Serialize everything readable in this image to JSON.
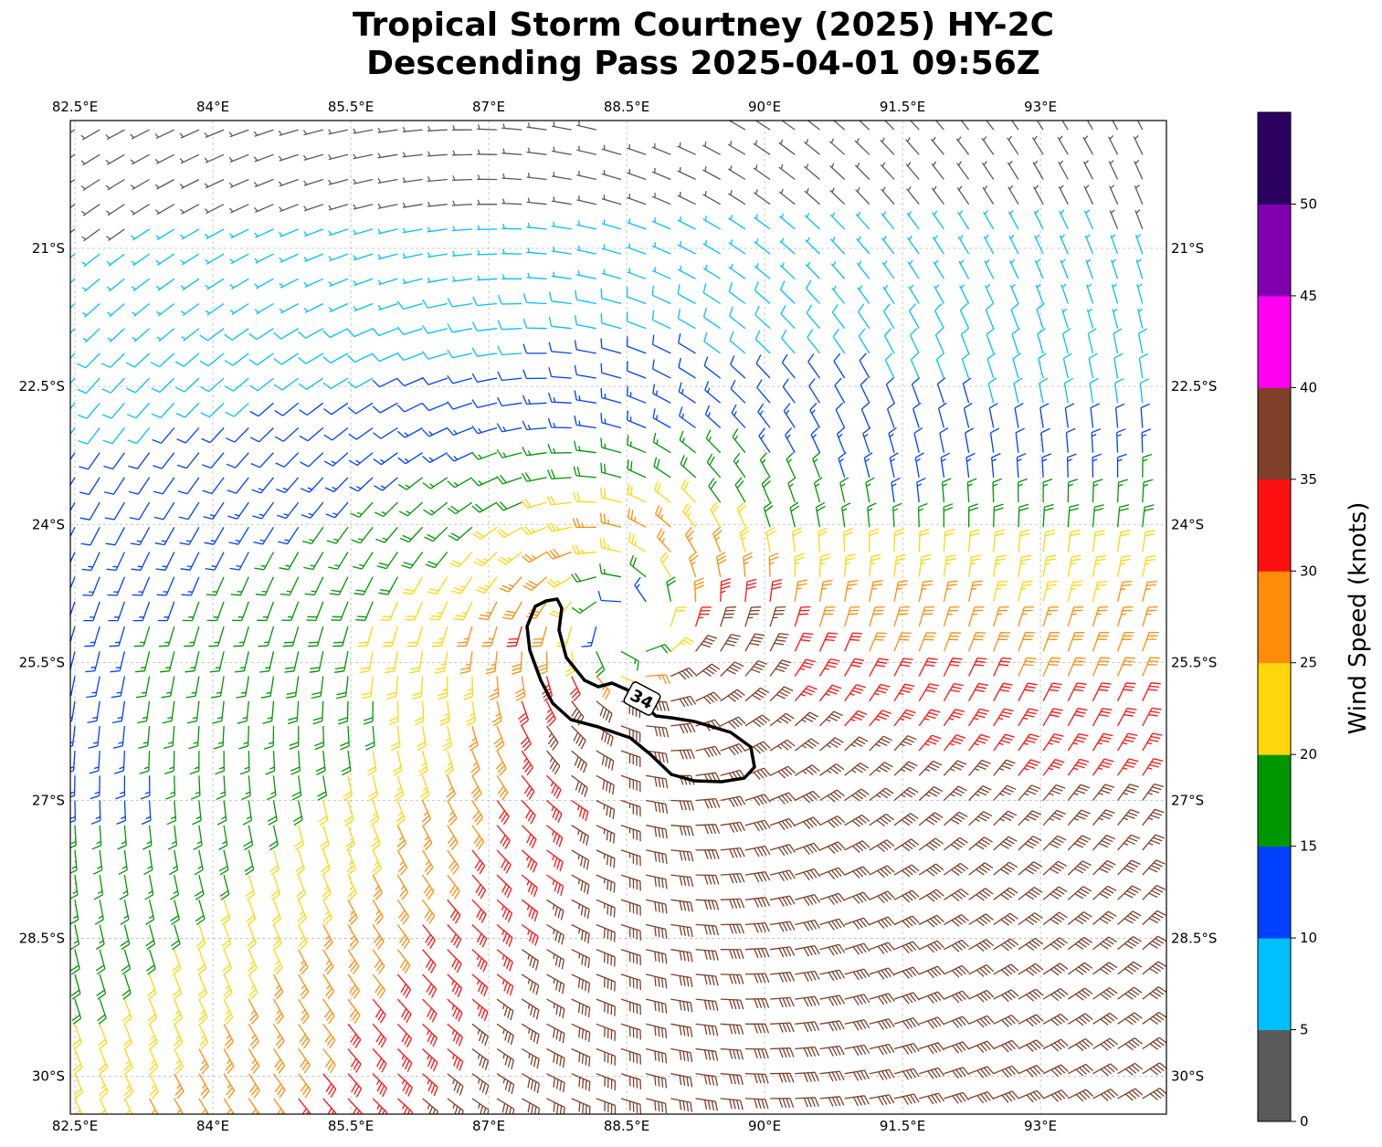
{
  "title": {
    "line1": "Tropical Storm Courtney (2025) HY-2C",
    "line2": "Descending Pass 2025-04-01 09:56Z"
  },
  "chart_data": {
    "type": "wind-barb map",
    "lon_ticks": [
      "82.5°E",
      "84°E",
      "85.5°E",
      "87°E",
      "88.5°E",
      "90°E",
      "91.5°E",
      "93°E"
    ],
    "lon_values": [
      82.5,
      84,
      85.5,
      87,
      88.5,
      90,
      91.5,
      93
    ],
    "lat_ticks": [
      "21°S",
      "22.5°S",
      "24°S",
      "25.5°S",
      "27°S",
      "28.5°S",
      "30°S"
    ],
    "lat_values": [
      -21,
      -22.5,
      -24,
      -25.5,
      -27,
      -28.5,
      -30
    ],
    "lon_range": [
      82.45,
      94.37
    ],
    "lat_range": [
      -30.41,
      -19.61
    ],
    "grid": true,
    "storm_center": {
      "lon": 88.5,
      "lat": -25.1
    },
    "contour": {
      "level": 34,
      "label": "34",
      "color": "#000000"
    },
    "colorbar": {
      "label": "Wind Speed (knots)",
      "bounds": [
        0,
        5,
        10,
        15,
        20,
        25,
        30,
        35,
        40,
        45,
        50,
        55
      ],
      "tick_labels": [
        "0",
        "5",
        "10",
        "15",
        "20",
        "25",
        "30",
        "35",
        "40",
        "45",
        "50"
      ],
      "colors": [
        "#5a5a5a",
        "#00bfff",
        "#0040ff",
        "#009600",
        "#ffd60a",
        "#ff8c0a",
        "#ff1010",
        "#7f3f28",
        "#ff00f0",
        "#8000b0",
        "#2a0060"
      ]
    }
  }
}
